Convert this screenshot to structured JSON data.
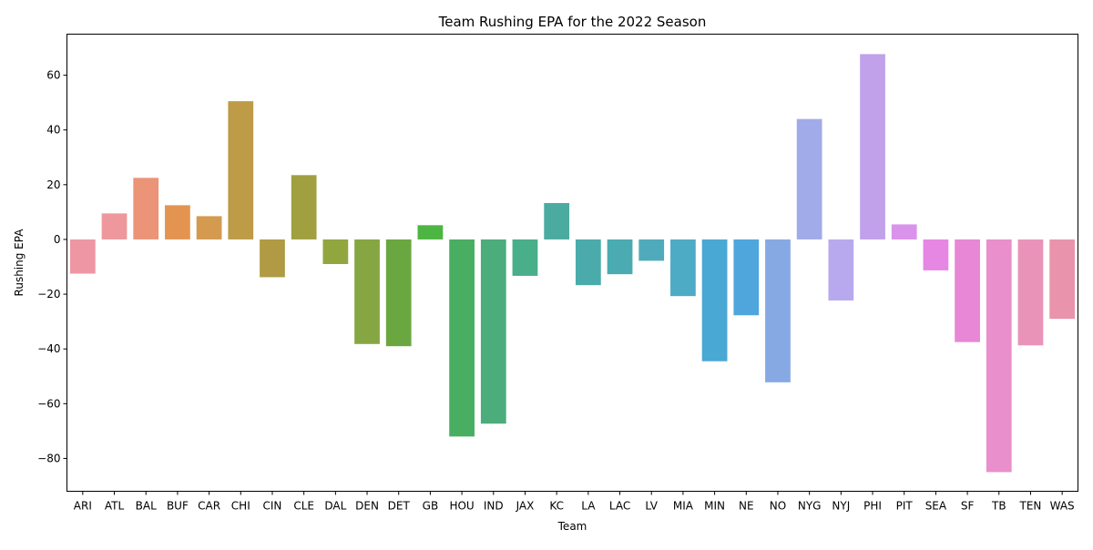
{
  "chart_data": {
    "type": "bar",
    "title": "Team Rushing EPA for the 2022 Season",
    "xlabel": "Team",
    "ylabel": "Rushing EPA",
    "ylim": [
      -92,
      75
    ],
    "yticks": [
      -80,
      -60,
      -40,
      -20,
      0,
      20,
      40,
      60
    ],
    "ytick_labels": [
      "−80",
      "−60",
      "−40",
      "−20",
      "0",
      "20",
      "40",
      "60"
    ],
    "grid": false,
    "legend": "none",
    "categories": [
      "ARI",
      "ATL",
      "BAL",
      "BUF",
      "CAR",
      "CHI",
      "CIN",
      "CLE",
      "DAL",
      "DEN",
      "DET",
      "GB",
      "HOU",
      "IND",
      "JAX",
      "KC",
      "LA",
      "LAC",
      "LV",
      "MIA",
      "MIN",
      "NE",
      "NO",
      "NYG",
      "NYJ",
      "PHI",
      "PIT",
      "SEA",
      "SF",
      "TB",
      "TEN",
      "WAS"
    ],
    "values": [
      -12.5,
      9.5,
      22.5,
      12.5,
      8.5,
      50.5,
      -13.8,
      23.5,
      -9.0,
      -38.2,
      -39.0,
      5.2,
      -72.0,
      -67.3,
      -13.3,
      13.3,
      -16.7,
      -12.7,
      -7.8,
      -20.7,
      -44.5,
      -27.7,
      -52.2,
      44.0,
      -22.3,
      67.7,
      5.5,
      -11.3,
      -37.5,
      -85.0,
      -38.7,
      -29.0
    ],
    "colors": [
      "#ee96a4",
      "#ee989d",
      "#eb9478",
      "#e49451",
      "#d49a50",
      "#bd9b47",
      "#b09b44",
      "#a0a040",
      "#92a640",
      "#86a643",
      "#6aa740",
      "#4db542",
      "#49ae62",
      "#4cac7c",
      "#49ae8a",
      "#4baba0",
      "#4aabaa",
      "#4aabb2",
      "#4fabbc",
      "#4eabc6",
      "#4aa8d4",
      "#4ea6dd",
      "#86a9e4",
      "#a2abe9",
      "#b8a9ef",
      "#c1a1e9",
      "#da93ea",
      "#e687e3",
      "#e787d5",
      "#e88fcc",
      "#e993b9",
      "#e993ac"
    ]
  }
}
